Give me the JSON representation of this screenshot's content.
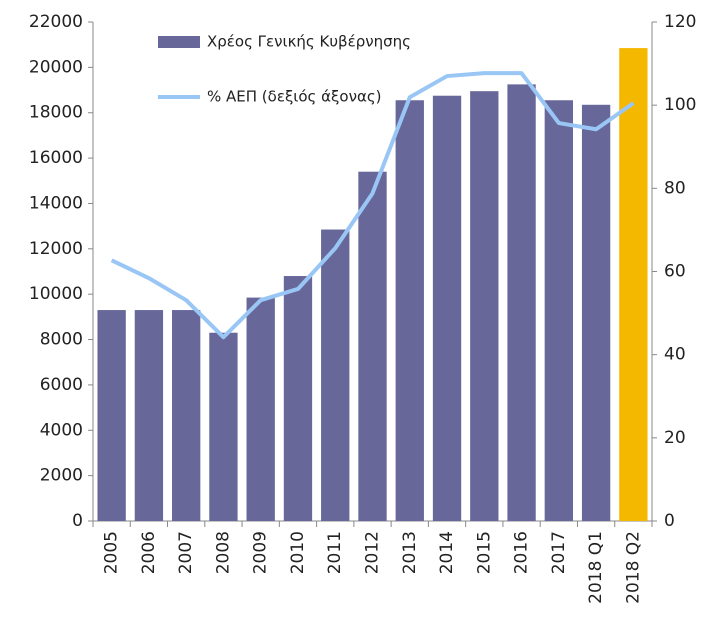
{
  "chart_data": {
    "type": "bar_line",
    "categories": [
      "2005",
      "2006",
      "2007",
      "2008",
      "2009",
      "2010",
      "2011",
      "2012",
      "2013",
      "2014",
      "2015",
      "2016",
      "2017",
      "2018 Q1",
      "2018 Q2"
    ],
    "series": [
      {
        "name": "Χρέος Γενικής Κυβέρνησης",
        "type": "bar",
        "color": "#67679a",
        "colors": [
          "#67679a",
          "#67679a",
          "#67679a",
          "#67679a",
          "#67679a",
          "#67679a",
          "#67679a",
          "#67679a",
          "#67679a",
          "#67679a",
          "#67679a",
          "#67679a",
          "#67679a",
          "#67679a",
          "#f5b800"
        ],
        "values": [
          9300,
          9300,
          9300,
          8300,
          9850,
          10800,
          12850,
          15400,
          18550,
          18750,
          18950,
          19250,
          18550,
          18350,
          20850
        ]
      },
      {
        "name": "% ΑΕΠ (δεξιός άξονας)",
        "type": "line",
        "axis": "y2",
        "color": "#99c6f5",
        "values": [
          62.7,
          58.4,
          53.1,
          44.2,
          53.1,
          55.8,
          65.6,
          78.8,
          101.9,
          107,
          107.7,
          107.7,
          95.7,
          94.2,
          100.5
        ]
      }
    ],
    "ylim": [
      0,
      22000
    ],
    "yticks": [
      0,
      2000,
      4000,
      6000,
      8000,
      10000,
      12000,
      14000,
      16000,
      18000,
      20000,
      22000
    ],
    "y2lim": [
      0,
      120
    ],
    "y2ticks": [
      0,
      20,
      40,
      60,
      80,
      100,
      120
    ],
    "grid": false
  }
}
